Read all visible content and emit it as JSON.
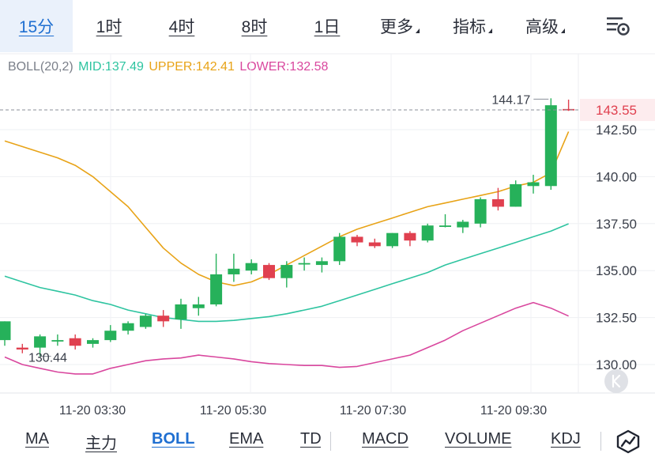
{
  "timeframes": [
    {
      "label": "15分",
      "active": true
    },
    {
      "label": "1时",
      "active": false
    },
    {
      "label": "4时",
      "active": false
    },
    {
      "label": "8时",
      "active": false
    },
    {
      "label": "1日",
      "active": false
    }
  ],
  "menus": [
    {
      "label": "更多"
    },
    {
      "label": "指标"
    },
    {
      "label": "高级"
    }
  ],
  "legend": {
    "name": "BOLL(20,2)",
    "mid": "MID:137.49",
    "upper": "UPPER:142.41",
    "lower": "LOWER:132.58"
  },
  "colors": {
    "up": "#26b15a",
    "down": "#e0404f",
    "mid": "#2ec4a0",
    "upper": "#e8a317",
    "lower": "#d9479e",
    "active_tab": "#1f6fd1",
    "last_price": "#e0404f"
  },
  "annotations": {
    "high_label": "144.17",
    "low_label": "130.44",
    "last_price_label": "143.55"
  },
  "chart_data": {
    "type": "candlestick",
    "y_ticks": [
      "142.50",
      "140.00",
      "137.50",
      "135.00",
      "132.50",
      "130.00"
    ],
    "x_ticks": [
      "11-20 03:30",
      "11-20 05:30",
      "11-20 07:30",
      "11-20 09:30"
    ],
    "ylim": [
      129.5,
      145.0
    ],
    "last_price": 143.55,
    "high": 144.17,
    "low": 130.44,
    "candles": [
      {
        "o": 131.3,
        "c": 132.3,
        "h": 132.3,
        "l": 131.0
      },
      {
        "o": 130.9,
        "c": 130.8,
        "h": 131.1,
        "l": 130.6
      },
      {
        "o": 130.9,
        "c": 131.5,
        "h": 131.6,
        "l": 130.44
      },
      {
        "o": 131.3,
        "c": 131.3,
        "h": 131.6,
        "l": 131.0
      },
      {
        "o": 131.4,
        "c": 131.0,
        "h": 131.6,
        "l": 130.8
      },
      {
        "o": 131.1,
        "c": 131.3,
        "h": 131.4,
        "l": 130.9
      },
      {
        "o": 131.3,
        "c": 131.8,
        "h": 132.1,
        "l": 131.2
      },
      {
        "o": 131.8,
        "c": 132.2,
        "h": 132.3,
        "l": 131.6
      },
      {
        "o": 132.0,
        "c": 132.6,
        "h": 132.7,
        "l": 131.9
      },
      {
        "o": 132.6,
        "c": 132.3,
        "h": 132.9,
        "l": 132.0
      },
      {
        "o": 132.4,
        "c": 133.2,
        "h": 133.5,
        "l": 131.9
      },
      {
        "o": 133.0,
        "c": 133.2,
        "h": 133.6,
        "l": 132.6
      },
      {
        "o": 133.2,
        "c": 134.8,
        "h": 135.9,
        "l": 133.1
      },
      {
        "o": 134.8,
        "c": 135.1,
        "h": 135.9,
        "l": 134.4
      },
      {
        "o": 135.0,
        "c": 135.4,
        "h": 135.6,
        "l": 134.8
      },
      {
        "o": 135.3,
        "c": 134.6,
        "h": 135.4,
        "l": 134.5
      },
      {
        "o": 134.6,
        "c": 135.3,
        "h": 135.5,
        "l": 134.1
      },
      {
        "o": 135.4,
        "c": 135.4,
        "h": 135.7,
        "l": 135.0
      },
      {
        "o": 135.3,
        "c": 135.5,
        "h": 135.7,
        "l": 134.9
      },
      {
        "o": 135.5,
        "c": 136.8,
        "h": 137.0,
        "l": 135.3
      },
      {
        "o": 136.8,
        "c": 136.5,
        "h": 136.9,
        "l": 136.3
      },
      {
        "o": 136.5,
        "c": 136.3,
        "h": 136.7,
        "l": 136.2
      },
      {
        "o": 136.3,
        "c": 137.0,
        "h": 137.0,
        "l": 136.2
      },
      {
        "o": 137.0,
        "c": 136.6,
        "h": 137.1,
        "l": 136.3
      },
      {
        "o": 136.6,
        "c": 137.4,
        "h": 137.5,
        "l": 136.5
      },
      {
        "o": 137.4,
        "c": 137.4,
        "h": 138.0,
        "l": 137.3
      },
      {
        "o": 137.3,
        "c": 137.6,
        "h": 137.7,
        "l": 137.0
      },
      {
        "o": 137.5,
        "c": 138.8,
        "h": 138.9,
        "l": 137.3
      },
      {
        "o": 138.8,
        "c": 138.4,
        "h": 139.4,
        "l": 138.2
      },
      {
        "o": 138.4,
        "c": 139.6,
        "h": 139.8,
        "l": 138.4
      },
      {
        "o": 139.5,
        "c": 139.7,
        "h": 140.1,
        "l": 139.1
      },
      {
        "o": 139.5,
        "c": 143.8,
        "h": 144.17,
        "l": 139.3
      },
      {
        "o": 143.6,
        "c": 143.55,
        "h": 144.1,
        "l": 143.5
      }
    ],
    "series": [
      {
        "name": "UPPER",
        "values": [
          141.9,
          141.6,
          141.3,
          141.0,
          140.6,
          140.0,
          139.2,
          138.4,
          137.3,
          136.2,
          135.4,
          134.8,
          134.4,
          134.2,
          134.4,
          134.8,
          135.3,
          135.8,
          136.3,
          136.8,
          137.2,
          137.5,
          137.8,
          138.1,
          138.4,
          138.6,
          138.8,
          139.0,
          139.2,
          139.5,
          139.7,
          140.2,
          142.4
        ]
      },
      {
        "name": "MID",
        "values": [
          134.7,
          134.4,
          134.1,
          133.9,
          133.7,
          133.4,
          133.2,
          132.9,
          132.7,
          132.5,
          132.4,
          132.3,
          132.3,
          132.35,
          132.45,
          132.55,
          132.7,
          132.9,
          133.1,
          133.4,
          133.7,
          134.0,
          134.3,
          134.6,
          134.9,
          135.3,
          135.6,
          135.9,
          136.2,
          136.5,
          136.8,
          137.1,
          137.49
        ]
      },
      {
        "name": "LOWER",
        "values": [
          130.4,
          130.0,
          129.8,
          129.6,
          129.5,
          129.5,
          129.8,
          130.0,
          130.2,
          130.3,
          130.35,
          130.5,
          130.4,
          130.3,
          130.15,
          130.05,
          130.0,
          129.95,
          129.95,
          129.85,
          129.9,
          130.1,
          130.3,
          130.5,
          130.9,
          131.3,
          131.8,
          132.2,
          132.6,
          133.0,
          133.3,
          133.0,
          132.58
        ]
      }
    ]
  },
  "indicator_tabs": [
    {
      "label": "MA",
      "active": false
    },
    {
      "label": "主力",
      "active": false
    },
    {
      "label": "BOLL",
      "active": true
    },
    {
      "label": "EMA",
      "active": false
    },
    {
      "label": "TD",
      "active": false
    },
    {
      "label": "MACD",
      "active": false
    },
    {
      "label": "VOLUME",
      "active": false
    },
    {
      "label": "KDJ",
      "active": false
    }
  ]
}
